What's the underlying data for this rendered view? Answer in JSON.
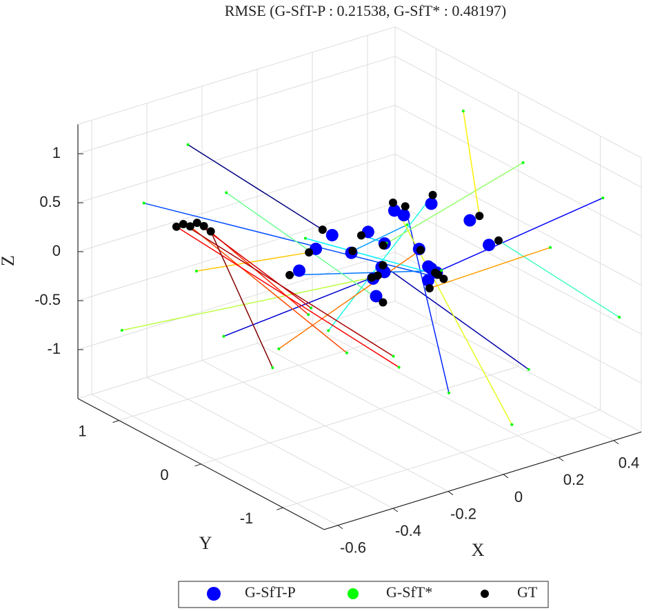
{
  "chart_data": {
    "type": "scatter3d",
    "title": "RMSE (G-SfT-P : 0.21538, G-SfT* : 0.48197)",
    "xlabel": "X",
    "ylabel": "Y",
    "zlabel": "Z",
    "xlim": [
      -0.65,
      0.5
    ],
    "ylim": [
      -1.5,
      1.5
    ],
    "zlim": [
      -1.5,
      1.3
    ],
    "xticks": [
      -0.6,
      -0.4,
      -0.2,
      0,
      0.2,
      0.4
    ],
    "yticks": [
      -1,
      0,
      1
    ],
    "zticks": [
      -1,
      -0.5,
      0,
      0.5,
      1
    ],
    "grid": true,
    "legend": "bottom",
    "series": [
      {
        "name": "G-SfT-P",
        "color": "#0000ff",
        "x": [
          -0.1,
          -0.04,
          0.03,
          0.07,
          0.13,
          0.19,
          -0.16,
          -0.09,
          0.06,
          0.11,
          0.2,
          0.26,
          -0.03,
          0.09,
          -0.13,
          0.17,
          0.28,
          -0.07,
          0.01,
          0.23
        ],
        "y": [
          0.25,
          -0.15,
          0.05,
          -0.35,
          0.15,
          -0.05,
          0.45,
          0.05,
          0.35,
          -0.25,
          0.05,
          -0.45,
          -0.05,
          0.25,
          -0.35,
          0.4,
          -0.15,
          0.55,
          -0.55,
          0.3
        ],
        "z": [
          0.25,
          0.05,
          -0.15,
          0.05,
          0.3,
          -0.25,
          -0.15,
          0.15,
          0.1,
          -0.05,
          0.4,
          0.15,
          -0.3,
          0.0,
          0.1,
          0.2,
          0.25,
          -0.05,
          0.05,
          -0.2
        ]
      },
      {
        "name": "G-SfT*",
        "color": "#00ff00",
        "x": [
          -0.4,
          0.3,
          -0.3,
          0.45,
          0.1,
          -0.5,
          0.4,
          -0.2,
          0.35,
          -0.45,
          0.05,
          0.48,
          -0.35,
          0.25,
          -0.55,
          0.15,
          0.42,
          -0.25,
          0.2,
          -0.1,
          -0.3,
          -0.35,
          -0.2,
          -0.4,
          -0.25,
          -0.45
        ],
        "y": [
          1.0,
          -0.8,
          0.9,
          -1.2,
          -0.5,
          1.2,
          0.6,
          -1.0,
          1.1,
          -0.6,
          0.8,
          -1.3,
          0.7,
          -0.9,
          1.3,
          -1.1,
          0.4,
          1.4,
          -1.4,
          0.9,
          -0.6,
          -0.3,
          -0.9,
          -0.5,
          -1.0,
          -0.2
        ],
        "z": [
          1.1,
          -1.0,
          -0.9,
          0.8,
          -1.2,
          0.5,
          -0.7,
          1.0,
          -0.6,
          0.9,
          -1.1,
          -0.4,
          0.7,
          1.2,
          -0.8,
          -1.3,
          1.0,
          -0.5,
          0.6,
          -1.2,
          -0.4,
          -0.1,
          -0.5,
          0.1,
          -0.3,
          -0.6
        ]
      },
      {
        "name": "GT",
        "color": "#000000",
        "x": [
          -0.12,
          -0.05,
          0.02,
          0.08,
          0.15,
          0.2,
          -0.18,
          -0.1,
          0.05,
          0.12,
          0.22,
          0.28,
          -0.02,
          0.1,
          -0.15,
          0.18,
          0.3,
          -0.08,
          0.0,
          0.25,
          -0.6,
          -0.58,
          -0.62,
          -0.59,
          -0.61,
          -0.57
        ],
        "y": [
          0.3,
          -0.2,
          0.1,
          -0.4,
          0.2,
          -0.1,
          0.5,
          0.0,
          0.4,
          -0.3,
          0.1,
          -0.5,
          -0.1,
          0.3,
          -0.4,
          0.45,
          -0.2,
          0.6,
          -0.6,
          0.35,
          0.3,
          0.2,
          0.4,
          0.25,
          0.35,
          0.15
        ],
        "z": [
          0.3,
          0.1,
          -0.2,
          0.0,
          0.35,
          -0.3,
          -0.2,
          0.2,
          0.05,
          -0.1,
          0.45,
          0.2,
          -0.35,
          -0.05,
          0.15,
          0.25,
          0.3,
          -0.1,
          0.0,
          -0.25,
          0.75,
          0.78,
          0.72,
          0.8,
          0.76,
          0.74
        ]
      }
    ]
  }
}
